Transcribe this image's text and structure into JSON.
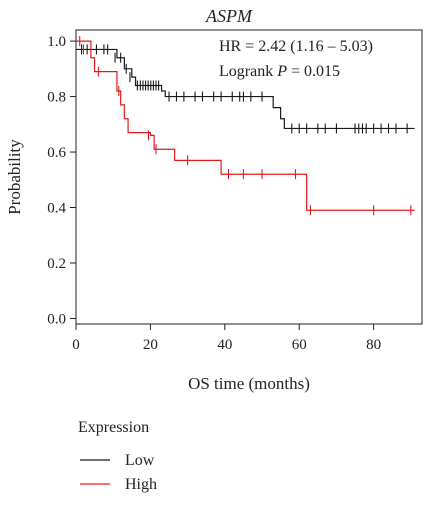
{
  "chart_data": {
    "type": "line",
    "subtype": "kaplan-meier",
    "title": "ASPM",
    "annotation_hr": "HR = 2.42 (1.16 – 5.03)",
    "annotation_logrank_prefix": "Logrank ",
    "annotation_logrank_p": "P",
    "annotation_logrank_suffix": " = 0.015",
    "xlabel": "OS time (months)",
    "ylabel": "Probability",
    "xlim": [
      0,
      93
    ],
    "ylim": [
      -0.02,
      1.04
    ],
    "xticks": [
      0,
      20,
      40,
      60,
      80
    ],
    "yticks": [
      0.0,
      0.2,
      0.4,
      0.6,
      0.8,
      1.0
    ],
    "ytick_labels": [
      "0.0",
      "0.2",
      "0.4",
      "0.6",
      "0.8",
      "1.0"
    ],
    "grid": false,
    "legend_title": "Expression",
    "series": [
      {
        "name": "Low",
        "color": "#1a1a1a",
        "steps": [
          [
            0,
            0.97
          ],
          [
            10,
            0.97
          ],
          [
            11,
            0.94
          ],
          [
            13,
            0.9
          ],
          [
            15,
            0.87
          ],
          [
            16,
            0.84
          ],
          [
            23,
            0.82
          ],
          [
            24,
            0.8
          ],
          [
            52,
            0.8
          ],
          [
            53,
            0.76
          ],
          [
            55,
            0.72
          ],
          [
            56,
            0.685
          ],
          [
            91,
            0.685
          ]
        ],
        "censors": [
          [
            1.5,
            0.97
          ],
          [
            3,
            0.97
          ],
          [
            5.5,
            0.97
          ],
          [
            7.5,
            0.97
          ],
          [
            8.5,
            0.97
          ],
          [
            10.5,
            0.94
          ],
          [
            12,
            0.94
          ],
          [
            13.5,
            0.9
          ],
          [
            14.5,
            0.87
          ],
          [
            16.5,
            0.84
          ],
          [
            17.3,
            0.84
          ],
          [
            18,
            0.84
          ],
          [
            18.7,
            0.84
          ],
          [
            19.4,
            0.84
          ],
          [
            20.1,
            0.84
          ],
          [
            20.8,
            0.84
          ],
          [
            21.5,
            0.84
          ],
          [
            22.2,
            0.84
          ],
          [
            25,
            0.8
          ],
          [
            27,
            0.8
          ],
          [
            29,
            0.8
          ],
          [
            32,
            0.8
          ],
          [
            34,
            0.8
          ],
          [
            37,
            0.8
          ],
          [
            39,
            0.8
          ],
          [
            42,
            0.8
          ],
          [
            44,
            0.8
          ],
          [
            45,
            0.8
          ],
          [
            47,
            0.8
          ],
          [
            50,
            0.8
          ],
          [
            58,
            0.685
          ],
          [
            60,
            0.685
          ],
          [
            62,
            0.685
          ],
          [
            65,
            0.685
          ],
          [
            67,
            0.685
          ],
          [
            70,
            0.685
          ],
          [
            75,
            0.685
          ],
          [
            76,
            0.685
          ],
          [
            77,
            0.685
          ],
          [
            78,
            0.685
          ],
          [
            80,
            0.685
          ],
          [
            82,
            0.685
          ],
          [
            84,
            0.685
          ],
          [
            86,
            0.685
          ],
          [
            89,
            0.685
          ]
        ]
      },
      {
        "name": "High",
        "color": "#e31a1c",
        "steps": [
          [
            0,
            1.0
          ],
          [
            3,
            1.0
          ],
          [
            4,
            0.94
          ],
          [
            5,
            0.89
          ],
          [
            10,
            0.89
          ],
          [
            11,
            0.82
          ],
          [
            12,
            0.77
          ],
          [
            13,
            0.72
          ],
          [
            14,
            0.67
          ],
          [
            19,
            0.67
          ],
          [
            20,
            0.66
          ],
          [
            21,
            0.61
          ],
          [
            26,
            0.61
          ],
          [
            26.5,
            0.57
          ],
          [
            38,
            0.57
          ],
          [
            39,
            0.52
          ],
          [
            61,
            0.52
          ],
          [
            62,
            0.39
          ],
          [
            91,
            0.39
          ]
        ],
        "censors": [
          [
            1,
            1.0
          ],
          [
            2,
            0.97
          ],
          [
            6,
            0.89
          ],
          [
            11.5,
            0.82
          ],
          [
            19.5,
            0.66
          ],
          [
            21.5,
            0.61
          ],
          [
            30,
            0.57
          ],
          [
            41,
            0.52
          ],
          [
            45,
            0.52
          ],
          [
            50,
            0.52
          ],
          [
            59,
            0.52
          ],
          [
            63,
            0.39
          ],
          [
            80,
            0.39
          ],
          [
            90,
            0.39
          ]
        ]
      }
    ]
  }
}
